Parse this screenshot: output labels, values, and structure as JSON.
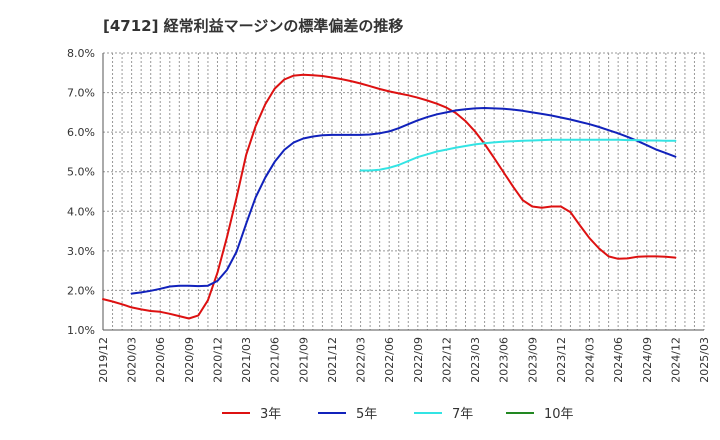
{
  "chart_data": {
    "type": "line",
    "title": "[4712]  経常利益マージンの標準偏差の推移",
    "xlabel": "",
    "ylabel": "",
    "x_tick_labels": [
      "2019/12",
      "2020/03",
      "2020/06",
      "2020/09",
      "2020/12",
      "2021/03",
      "2021/06",
      "2021/09",
      "2021/12",
      "2022/03",
      "2022/06",
      "2022/09",
      "2022/12",
      "2023/03",
      "2023/06",
      "2023/09",
      "2023/12",
      "2024/03",
      "2024/06",
      "2024/09",
      "2024/12",
      "2025/03"
    ],
    "y_ticks": [
      1.0,
      2.0,
      3.0,
      4.0,
      5.0,
      6.0,
      7.0,
      8.0
    ],
    "y_tick_labels": [
      "1.0%",
      "2.0%",
      "3.0%",
      "4.0%",
      "5.0%",
      "6.0%",
      "7.0%",
      "8.0%"
    ],
    "ylim": [
      1.0,
      8.0
    ],
    "grid": true,
    "legend_position": "bottom",
    "colors": {
      "3y": "#dd1111",
      "5y": "#1122bb",
      "7y": "#33e4e4",
      "10y": "#228822",
      "grid": "#999999",
      "axis": "#555555"
    },
    "series": [
      {
        "name": "3年",
        "key": "3y",
        "x": [
          "2019/12",
          "2020/01",
          "2020/02",
          "2020/03",
          "2020/04",
          "2020/05",
          "2020/06",
          "2020/07",
          "2020/08",
          "2020/09",
          "2020/10",
          "2020/11",
          "2020/12",
          "2021/01",
          "2021/02",
          "2021/03",
          "2021/04",
          "2021/05",
          "2021/06",
          "2021/07",
          "2021/08",
          "2021/09",
          "2021/10",
          "2021/11",
          "2021/12",
          "2022/01",
          "2022/02",
          "2022/03",
          "2022/04",
          "2022/05",
          "2022/06",
          "2022/07",
          "2022/08",
          "2022/09",
          "2022/10",
          "2022/11",
          "2022/12",
          "2023/01",
          "2023/02",
          "2023/03",
          "2023/04",
          "2023/05",
          "2023/06",
          "2023/07",
          "2023/08",
          "2023/09",
          "2023/10",
          "2023/11",
          "2023/12",
          "2024/01",
          "2024/02",
          "2024/03",
          "2024/04",
          "2024/05",
          "2024/06",
          "2024/07",
          "2024/08",
          "2024/09",
          "2024/10",
          "2024/11",
          "2024/12"
        ],
        "values": [
          1.78,
          1.72,
          1.65,
          1.57,
          1.52,
          1.48,
          1.46,
          1.41,
          1.35,
          1.29,
          1.37,
          1.75,
          2.45,
          3.35,
          4.35,
          5.42,
          6.15,
          6.7,
          7.1,
          7.33,
          7.43,
          7.45,
          7.44,
          7.42,
          7.38,
          7.34,
          7.29,
          7.23,
          7.16,
          7.09,
          7.03,
          6.98,
          6.93,
          6.87,
          6.8,
          6.72,
          6.62,
          6.48,
          6.28,
          6.02,
          5.7,
          5.35,
          4.98,
          4.62,
          4.28,
          4.12,
          4.09,
          4.12,
          4.12,
          3.98,
          3.64,
          3.32,
          3.06,
          2.86,
          2.8,
          2.81,
          2.85,
          2.86,
          2.86,
          2.85,
          2.83
        ]
      },
      {
        "name": "5年",
        "key": "5y",
        "x": [
          "2020/03",
          "2020/04",
          "2020/05",
          "2020/06",
          "2020/07",
          "2020/08",
          "2020/09",
          "2020/10",
          "2020/11",
          "2020/12",
          "2021/01",
          "2021/02",
          "2021/03",
          "2021/04",
          "2021/05",
          "2021/06",
          "2021/07",
          "2021/08",
          "2021/09",
          "2021/10",
          "2021/11",
          "2021/12",
          "2022/01",
          "2022/02",
          "2022/03",
          "2022/04",
          "2022/05",
          "2022/06",
          "2022/07",
          "2022/08",
          "2022/09",
          "2022/10",
          "2022/11",
          "2022/12",
          "2023/01",
          "2023/02",
          "2023/03",
          "2023/04",
          "2023/05",
          "2023/06",
          "2023/07",
          "2023/08",
          "2023/09",
          "2023/10",
          "2023/11",
          "2023/12",
          "2024/01",
          "2024/02",
          "2024/03",
          "2024/04",
          "2024/05",
          "2024/06",
          "2024/07",
          "2024/08",
          "2024/09",
          "2024/10",
          "2024/11",
          "2024/12"
        ],
        "values": [
          1.92,
          1.95,
          1.99,
          2.04,
          2.1,
          2.12,
          2.12,
          2.11,
          2.12,
          2.24,
          2.52,
          2.98,
          3.68,
          4.35,
          4.85,
          5.25,
          5.55,
          5.74,
          5.84,
          5.89,
          5.92,
          5.93,
          5.93,
          5.93,
          5.93,
          5.94,
          5.97,
          6.02,
          6.1,
          6.2,
          6.3,
          6.38,
          6.45,
          6.5,
          6.55,
          6.58,
          6.6,
          6.61,
          6.6,
          6.59,
          6.57,
          6.54,
          6.5,
          6.46,
          6.42,
          6.37,
          6.32,
          6.26,
          6.2,
          6.13,
          6.05,
          5.97,
          5.88,
          5.78,
          5.67,
          5.56,
          5.47,
          5.38
        ]
      },
      {
        "name": "7年",
        "key": "7y",
        "x": [
          "2022/03",
          "2022/04",
          "2022/05",
          "2022/06",
          "2022/07",
          "2022/08",
          "2022/09",
          "2022/10",
          "2022/11",
          "2022/12",
          "2023/01",
          "2023/02",
          "2023/03",
          "2023/04",
          "2023/05",
          "2023/06",
          "2023/07",
          "2023/08",
          "2023/09",
          "2023/10",
          "2023/11",
          "2023/12",
          "2024/01",
          "2024/02",
          "2024/03",
          "2024/04",
          "2024/05",
          "2024/06",
          "2024/07",
          "2024/08",
          "2024/09",
          "2024/10",
          "2024/11",
          "2024/12"
        ],
        "values": [
          5.03,
          5.03,
          5.05,
          5.1,
          5.17,
          5.27,
          5.37,
          5.44,
          5.51,
          5.56,
          5.61,
          5.65,
          5.69,
          5.72,
          5.74,
          5.76,
          5.77,
          5.78,
          5.79,
          5.8,
          5.81,
          5.81,
          5.81,
          5.81,
          5.81,
          5.81,
          5.81,
          5.81,
          5.8,
          5.8,
          5.79,
          5.79,
          5.78,
          5.78
        ]
      },
      {
        "name": "10年",
        "key": "10y",
        "x": [],
        "values": []
      }
    ]
  }
}
